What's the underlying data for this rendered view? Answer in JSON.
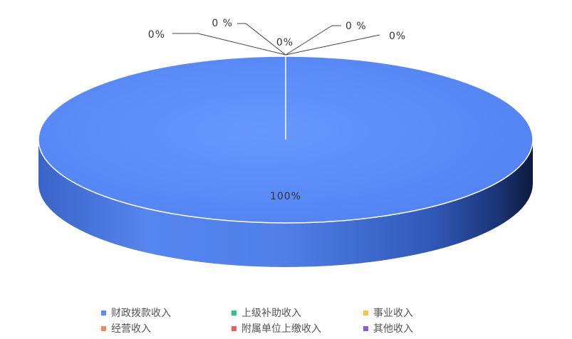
{
  "chart_data": {
    "type": "pie",
    "style": "3d",
    "title": "",
    "series": [
      {
        "name": "",
        "slices": [
          {
            "label": "财政拨款收入",
            "value": 100,
            "display": "100%",
            "color": "#5b8ef5"
          },
          {
            "label": "上级补助收入",
            "value": 0,
            "display": "0%",
            "color": "#2bc48a"
          },
          {
            "label": "事业收入",
            "value": 0,
            "display": "0%",
            "color": "#f5c242"
          },
          {
            "label": "经营收入",
            "value": 0,
            "display": "0%",
            "color": "#f08a5d"
          },
          {
            "label": "附属单位上缴收入",
            "value": 0,
            "display": "0%",
            "color": "#ef5b5b"
          },
          {
            "label": "其他收入",
            "value": 0,
            "display": "0%",
            "color": "#8e5bd8"
          }
        ]
      }
    ],
    "zero_labels": [
      "0%",
      "0 %",
      "0%",
      "0 %",
      "0%"
    ],
    "legend": {
      "position": "bottom",
      "items": [
        {
          "label": "财政拨款收入",
          "color": "#5b8ef5"
        },
        {
          "label": "上级补助收入",
          "color": "#2bc48a"
        },
        {
          "label": "事业收入",
          "color": "#f5c242"
        },
        {
          "label": "经营收入",
          "color": "#f08a5d"
        },
        {
          "label": "附属单位上缴收入",
          "color": "#ef5b5b"
        },
        {
          "label": "其他收入",
          "color": "#8e5bd8"
        }
      ]
    }
  }
}
